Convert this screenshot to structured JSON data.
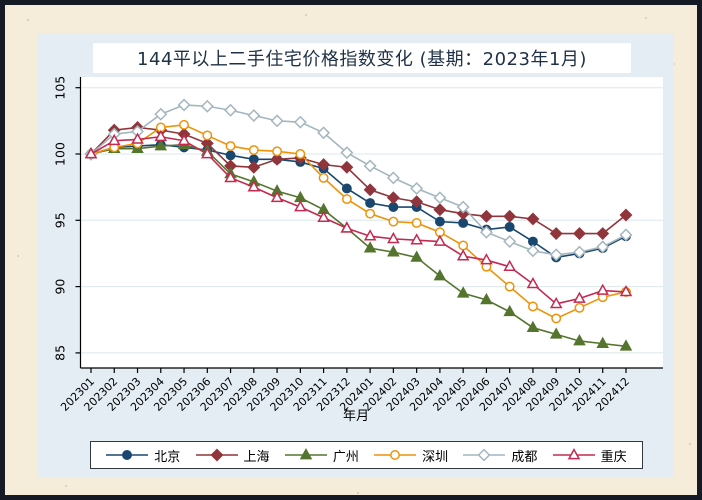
{
  "chart_data": {
    "type": "line",
    "title": "144平以上二手住宅价格指数变化 (基期：2023年1月)",
    "xlabel": "年月",
    "ylabel": "",
    "ylim": [
      85,
      105
    ],
    "yticks": [
      85,
      90,
      95,
      100,
      105
    ],
    "grid": "horizontal",
    "legend_position": "bottom",
    "x": [
      "202301",
      "202302",
      "202303",
      "202304",
      "202305",
      "202306",
      "202307",
      "202308",
      "202309",
      "202310",
      "202311",
      "202312",
      "202401",
      "202402",
      "202403",
      "202404",
      "202405",
      "202406",
      "202407",
      "202408",
      "202409",
      "202410",
      "202411",
      "202412"
    ],
    "series": [
      {
        "name": "北京",
        "color": "#1a476f",
        "marker": "circle",
        "fill": "filled",
        "values": [
          100,
          100.5,
          100.6,
          100.7,
          100.5,
          100.3,
          99.9,
          99.6,
          99.6,
          99.4,
          98.9,
          97.4,
          96.3,
          96.0,
          96.0,
          94.9,
          94.8,
          94.3,
          94.5,
          93.4,
          92.2,
          92.5,
          92.9,
          93.8
        ]
      },
      {
        "name": "上海",
        "color": "#90353b",
        "marker": "diamond",
        "fill": "filled",
        "values": [
          100,
          101.8,
          102.0,
          101.8,
          101.5,
          100.8,
          99.1,
          99.0,
          99.6,
          99.7,
          99.2,
          99.0,
          97.3,
          96.7,
          96.4,
          95.8,
          95.5,
          95.3,
          95.3,
          95.1,
          94.0,
          94.0,
          94.0,
          95.4
        ]
      },
      {
        "name": "广州",
        "color": "#55752f",
        "marker": "triangle",
        "fill": "filled",
        "values": [
          100,
          100.4,
          100.4,
          100.6,
          100.7,
          100.2,
          98.5,
          97.9,
          97.2,
          96.7,
          95.8,
          94.4,
          92.9,
          92.6,
          92.2,
          90.8,
          89.5,
          89.0,
          88.1,
          86.9,
          86.4,
          85.9,
          85.7,
          85.5
        ]
      },
      {
        "name": "深圳",
        "color": "#ef9208",
        "marker": "circle",
        "fill": "open",
        "values": [
          100,
          100.5,
          100.8,
          102.0,
          102.2,
          101.4,
          100.6,
          100.3,
          100.2,
          100.0,
          98.2,
          96.6,
          95.5,
          94.9,
          94.8,
          94.1,
          93.1,
          91.5,
          90.0,
          88.5,
          87.6,
          88.4,
          89.2,
          89.6
        ]
      },
      {
        "name": "成都",
        "color": "#a4b6be",
        "marker": "diamond",
        "fill": "open",
        "values": [
          100,
          101.5,
          101.7,
          103.0,
          103.7,
          103.6,
          103.3,
          102.9,
          102.5,
          102.4,
          101.6,
          100.1,
          99.1,
          98.2,
          97.4,
          96.7,
          96.0,
          94.1,
          93.4,
          92.7,
          92.4,
          92.6,
          93.0,
          93.9
        ]
      },
      {
        "name": "重庆",
        "color": "#c42a50",
        "marker": "triangle",
        "fill": "open",
        "values": [
          100,
          101.0,
          101.1,
          101.3,
          101.0,
          100.0,
          98.2,
          97.5,
          96.7,
          96.0,
          95.2,
          94.4,
          93.8,
          93.6,
          93.5,
          93.4,
          92.3,
          92.0,
          91.5,
          90.2,
          88.7,
          89.1,
          89.7,
          89.6
        ]
      }
    ]
  }
}
